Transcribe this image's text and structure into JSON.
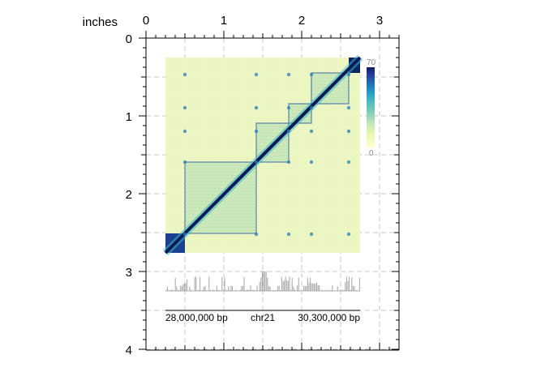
{
  "ruler": {
    "unit_label": "inches",
    "top_ticks": [
      "0",
      "1",
      "2",
      "3"
    ],
    "left_ticks": [
      "0",
      "1",
      "2",
      "3",
      "4"
    ]
  },
  "heatmap": {
    "colorscale": [
      "#ffffd9",
      "#edf8b1",
      "#c7e9b4",
      "#7fcdbb",
      "#41b6c4",
      "#1d91c0",
      "#225ea8",
      "#253494",
      "#081d58"
    ],
    "scale_max_label": "70",
    "scale_min_label": "0",
    "domain_color_dark": "#0b2565",
    "background_color": "#f1f7c9"
  },
  "signal_track": {
    "color": "#a6a6a6"
  },
  "genome_axis": {
    "left_label": "28,000,000 bp",
    "center_label": "chr21",
    "right_label": "30,300,000 bp"
  }
}
